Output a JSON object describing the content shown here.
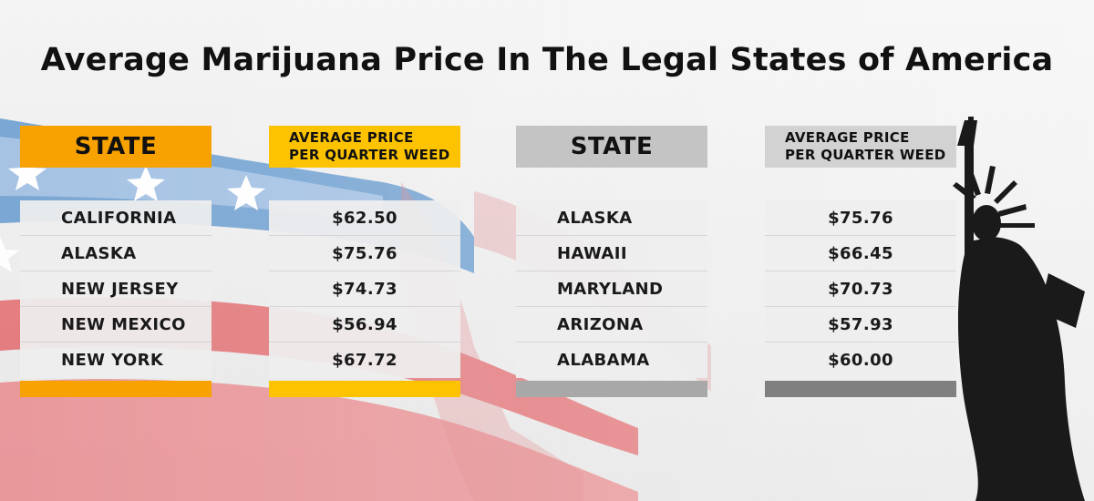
{
  "title": "Average Marijuana Price In The Legal States of America",
  "colors": {
    "orange": "#f7a200",
    "yellow": "#fdc300",
    "gray_header": "#c4c4c4",
    "gray_header2": "#d2d2d2",
    "gray_foot": "#a8a8a8",
    "gray_foot2": "#808080"
  },
  "chart_data": {
    "type": "table",
    "tables": [
      {
        "headers": [
          "STATE",
          "AVERAGE PRICE PER QUARTER WEED"
        ],
        "header_lines": [
          [
            "STATE"
          ],
          [
            "AVERAGE PRICE",
            "PER QUARTER WEED"
          ]
        ],
        "rows": [
          [
            "CALIFORNIA",
            "$62.50"
          ],
          [
            "ALASKA",
            "$75.76"
          ],
          [
            "NEW JERSEY",
            "$74.73"
          ],
          [
            "NEW MEXICO",
            "$56.94"
          ],
          [
            "NEW YORK",
            "$67.72"
          ]
        ]
      },
      {
        "headers": [
          "STATE",
          "AVERAGE PRICE PER QUARTER WEED"
        ],
        "header_lines": [
          [
            "STATE"
          ],
          [
            "AVERAGE PRICE",
            "PER QUARTER WEED"
          ]
        ],
        "rows": [
          [
            "ALASKA",
            "$75.76"
          ],
          [
            "HAWAII",
            "$66.45"
          ],
          [
            "MARYLAND",
            "$70.73"
          ],
          [
            "ARIZONA",
            "$57.93"
          ],
          [
            "ALABAMA",
            "$60.00"
          ]
        ]
      }
    ]
  },
  "decor": {
    "background": "american-flag-icon",
    "figure": "statue-of-liberty-icon"
  }
}
